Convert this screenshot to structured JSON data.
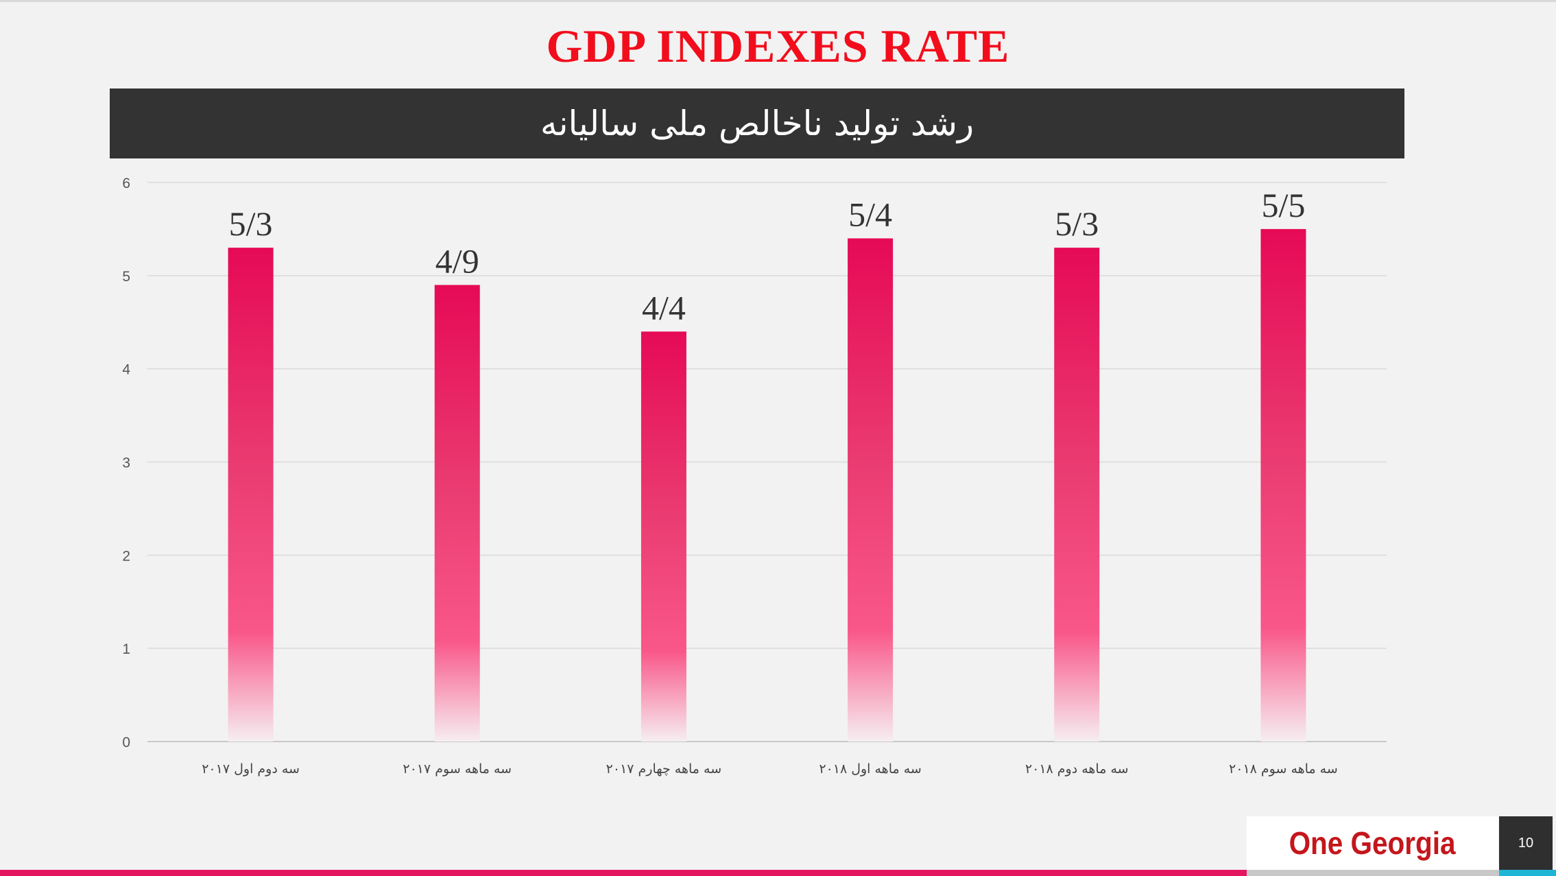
{
  "slide": {
    "title": "GDP INDEXES RATE",
    "subtitle": "رشد تولید ناخالص ملی سالیانه",
    "logo": "One Georgia",
    "page_number": "10",
    "colors": {
      "title": "#f20d1c",
      "subtitle_bar": "#333333",
      "bar_top": "#e60a56",
      "bar_mid": "#f9578a",
      "accent_red": "#e3165f",
      "accent_cyan": "#1fb5d4",
      "logo": "#c4161c"
    }
  },
  "chart_data": {
    "type": "bar",
    "title": "",
    "xlabel": "",
    "ylabel": "",
    "categories": [
      "سه دوم اول ۲۰۱۷",
      "سه ماهه سوم ۲۰۱۷",
      "سه ماهه چهارم ۲۰۱۷",
      "سه ماهه اول ۲۰۱۸",
      "سه ماهه دوم ۲۰۱۸",
      "سه ماهه سوم ۲۰۱۸"
    ],
    "values": [
      5.3,
      4.9,
      4.4,
      5.4,
      5.3,
      5.5
    ],
    "data_labels": [
      "5/3",
      "4/9",
      "4/4",
      "5/4",
      "5/3",
      "5/5"
    ],
    "ylim": [
      0,
      6
    ],
    "yticks": [
      "0",
      "1",
      "2",
      "3",
      "4",
      "5",
      "6"
    ],
    "grid": true,
    "legend": "none"
  }
}
